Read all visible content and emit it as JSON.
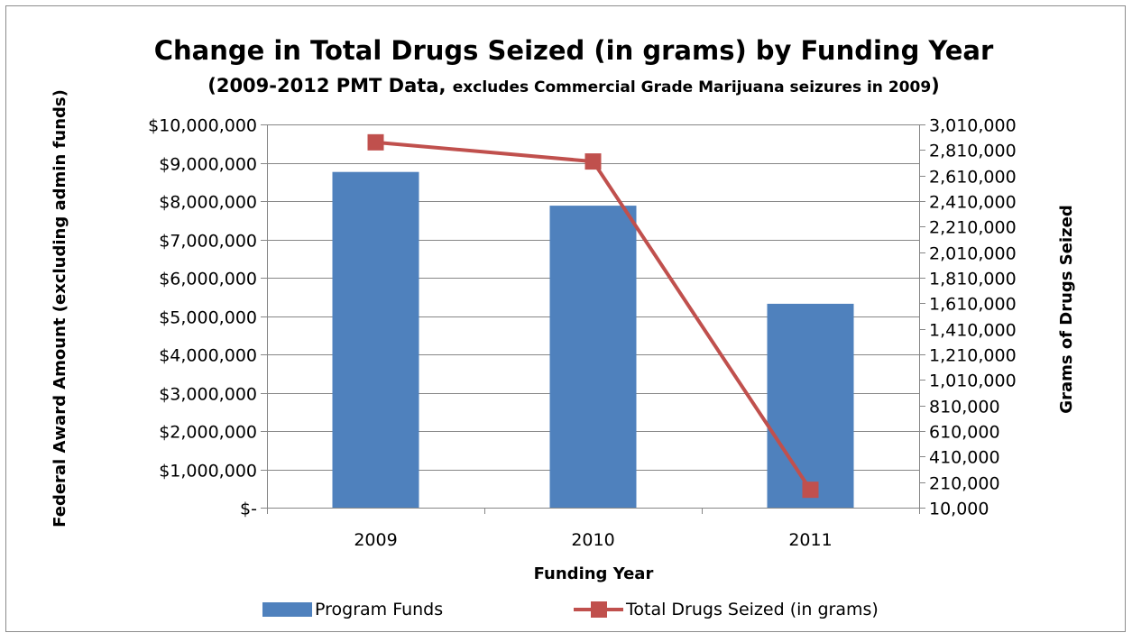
{
  "chart_data": {
    "type": "bar",
    "title": "Change in Total Drugs Seized (in grams) by Funding Year",
    "subtitle_main": "(2009-2012  PMT Data, ",
    "subtitle_small": "excludes Commercial Grade Marijuana seizures in 2009",
    "subtitle_close": ")",
    "xlabel": "Funding Year",
    "ylabel_left": "Federal Award Amount (excluding admin funds)",
    "ylabel_right": "Grams of Drugs Seized",
    "categories": [
      "2009",
      "2010",
      "2011"
    ],
    "ylim_left": [
      0,
      10000000
    ],
    "ylim_right": [
      10000,
      3010000
    ],
    "left_ticks": [
      {
        "value": 0,
        "label": "$-"
      },
      {
        "value": 1000000,
        "label": "$1,000,000"
      },
      {
        "value": 2000000,
        "label": "$2,000,000"
      },
      {
        "value": 3000000,
        "label": "$3,000,000"
      },
      {
        "value": 4000000,
        "label": "$4,000,000"
      },
      {
        "value": 5000000,
        "label": "$5,000,000"
      },
      {
        "value": 6000000,
        "label": "$6,000,000"
      },
      {
        "value": 7000000,
        "label": "$7,000,000"
      },
      {
        "value": 8000000,
        "label": "$8,000,000"
      },
      {
        "value": 9000000,
        "label": "$9,000,000"
      },
      {
        "value": 10000000,
        "label": "$10,000,000"
      }
    ],
    "right_ticks": [
      {
        "value": 10000,
        "label": "10,000"
      },
      {
        "value": 210000,
        "label": "210,000"
      },
      {
        "value": 410000,
        "label": "410,000"
      },
      {
        "value": 610000,
        "label": "610,000"
      },
      {
        "value": 810000,
        "label": "810,000"
      },
      {
        "value": 1010000,
        "label": "1,010,000"
      },
      {
        "value": 1210000,
        "label": "1,210,000"
      },
      {
        "value": 1410000,
        "label": "1,410,000"
      },
      {
        "value": 1610000,
        "label": "1,610,000"
      },
      {
        "value": 1810000,
        "label": "1,810,000"
      },
      {
        "value": 2010000,
        "label": "2,010,000"
      },
      {
        "value": 2210000,
        "label": "2,210,000"
      },
      {
        "value": 2410000,
        "label": "2,410,000"
      },
      {
        "value": 2610000,
        "label": "2,610,000"
      },
      {
        "value": 2810000,
        "label": "2,810,000"
      },
      {
        "value": 3010000,
        "label": "3,010,000"
      }
    ],
    "series": [
      {
        "name": "Program Funds",
        "type": "bar",
        "axis": "left",
        "color": "#4f81bd",
        "values": [
          8760000,
          7880000,
          5320000
        ]
      },
      {
        "name": "Total Drugs Seized (in grams)",
        "type": "line",
        "axis": "right",
        "color": "#c0504d",
        "values": [
          2870000,
          2720000,
          150000
        ]
      }
    ],
    "grid": true,
    "legend_position": "bottom"
  }
}
